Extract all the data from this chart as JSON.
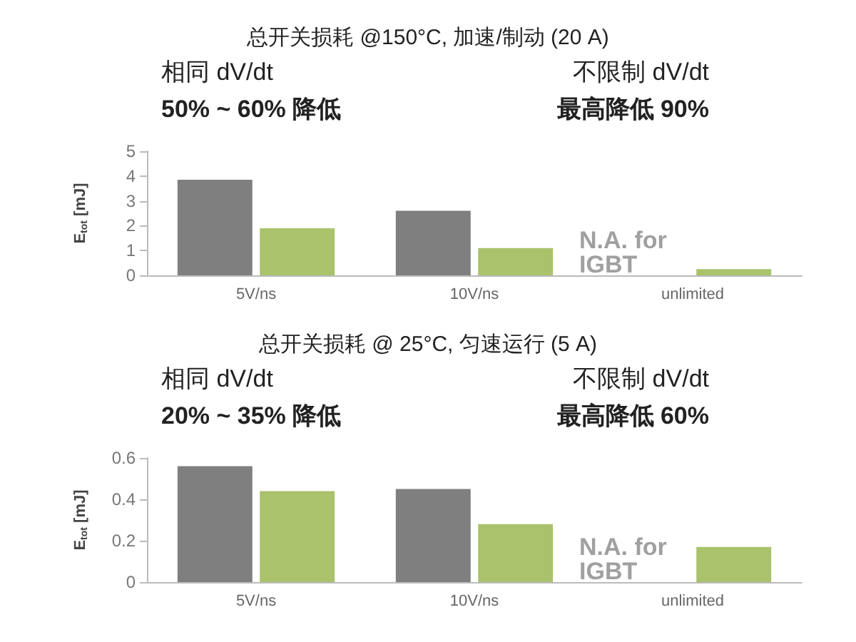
{
  "chart_data": [
    {
      "type": "bar",
      "title": "总开关损耗 @150°C, 加速/制动 (20 A)",
      "ylabel": "E$_{tot}$ [mJ]",
      "categories": [
        "5V/ns",
        "10V/ns",
        "unlimited"
      ],
      "series": [
        {
          "color": "#7f7f7f",
          "values": [
            3.85,
            2.6,
            null
          ]
        },
        {
          "color": "#a9c26b",
          "values": [
            1.9,
            1.1,
            0.25
          ]
        }
      ],
      "ylim": [
        0,
        5
      ],
      "yticks": [
        0,
        1,
        2,
        3,
        4,
        5
      ],
      "grid": false,
      "annotations": [
        "相同 dV/dt",
        "50% ~ 60% 降低",
        "不限制 dV/dt",
        "最高降低 90%",
        "N.A. for IGBT"
      ]
    },
    {
      "type": "bar",
      "title": "总开关损耗 @ 25°C, 匀速运行 (5 A)",
      "ylabel": "E$_{tot}$ [mJ]",
      "categories": [
        "5V/ns",
        "10V/ns",
        "unlimited"
      ],
      "series": [
        {
          "color": "#7f7f7f",
          "values": [
            0.56,
            0.45,
            null
          ]
        },
        {
          "color": "#a9c26b",
          "values": [
            0.44,
            0.28,
            0.17
          ]
        }
      ],
      "ylim": [
        0,
        0.6
      ],
      "yticks": [
        0,
        0.2,
        0.4,
        0.6
      ],
      "grid": false,
      "annotations": [
        "相同 dV/dt",
        "20% ~ 35% 降低",
        "不限制 dV/dt",
        "最高降低 60%",
        "N.A. for IGBT"
      ]
    }
  ]
}
